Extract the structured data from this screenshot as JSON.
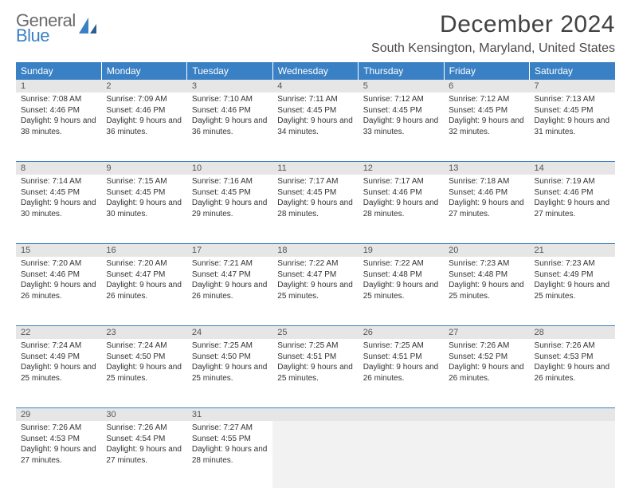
{
  "brand": {
    "part1": "General",
    "part2": "Blue"
  },
  "title": "December 2024",
  "location": "South Kensington, Maryland, United States",
  "colors": {
    "header_bg": "#3a80c4",
    "header_fg": "#ffffff",
    "daynum_bg": "#e6e6e6",
    "rule": "#3a80c4",
    "page_bg": "#ffffff",
    "text": "#333333",
    "brand_gray": "#6b6b6b",
    "brand_blue": "#3a80c4"
  },
  "weekdays": [
    "Sunday",
    "Monday",
    "Tuesday",
    "Wednesday",
    "Thursday",
    "Friday",
    "Saturday"
  ],
  "weeks": [
    [
      {
        "n": "1",
        "sr": "7:08 AM",
        "ss": "4:46 PM",
        "dl": "9 hours and 38 minutes."
      },
      {
        "n": "2",
        "sr": "7:09 AM",
        "ss": "4:46 PM",
        "dl": "9 hours and 36 minutes."
      },
      {
        "n": "3",
        "sr": "7:10 AM",
        "ss": "4:46 PM",
        "dl": "9 hours and 36 minutes."
      },
      {
        "n": "4",
        "sr": "7:11 AM",
        "ss": "4:45 PM",
        "dl": "9 hours and 34 minutes."
      },
      {
        "n": "5",
        "sr": "7:12 AM",
        "ss": "4:45 PM",
        "dl": "9 hours and 33 minutes."
      },
      {
        "n": "6",
        "sr": "7:12 AM",
        "ss": "4:45 PM",
        "dl": "9 hours and 32 minutes."
      },
      {
        "n": "7",
        "sr": "7:13 AM",
        "ss": "4:45 PM",
        "dl": "9 hours and 31 minutes."
      }
    ],
    [
      {
        "n": "8",
        "sr": "7:14 AM",
        "ss": "4:45 PM",
        "dl": "9 hours and 30 minutes."
      },
      {
        "n": "9",
        "sr": "7:15 AM",
        "ss": "4:45 PM",
        "dl": "9 hours and 30 minutes."
      },
      {
        "n": "10",
        "sr": "7:16 AM",
        "ss": "4:45 PM",
        "dl": "9 hours and 29 minutes."
      },
      {
        "n": "11",
        "sr": "7:17 AM",
        "ss": "4:45 PM",
        "dl": "9 hours and 28 minutes."
      },
      {
        "n": "12",
        "sr": "7:17 AM",
        "ss": "4:46 PM",
        "dl": "9 hours and 28 minutes."
      },
      {
        "n": "13",
        "sr": "7:18 AM",
        "ss": "4:46 PM",
        "dl": "9 hours and 27 minutes."
      },
      {
        "n": "14",
        "sr": "7:19 AM",
        "ss": "4:46 PM",
        "dl": "9 hours and 27 minutes."
      }
    ],
    [
      {
        "n": "15",
        "sr": "7:20 AM",
        "ss": "4:46 PM",
        "dl": "9 hours and 26 minutes."
      },
      {
        "n": "16",
        "sr": "7:20 AM",
        "ss": "4:47 PM",
        "dl": "9 hours and 26 minutes."
      },
      {
        "n": "17",
        "sr": "7:21 AM",
        "ss": "4:47 PM",
        "dl": "9 hours and 26 minutes."
      },
      {
        "n": "18",
        "sr": "7:22 AM",
        "ss": "4:47 PM",
        "dl": "9 hours and 25 minutes."
      },
      {
        "n": "19",
        "sr": "7:22 AM",
        "ss": "4:48 PM",
        "dl": "9 hours and 25 minutes."
      },
      {
        "n": "20",
        "sr": "7:23 AM",
        "ss": "4:48 PM",
        "dl": "9 hours and 25 minutes."
      },
      {
        "n": "21",
        "sr": "7:23 AM",
        "ss": "4:49 PM",
        "dl": "9 hours and 25 minutes."
      }
    ],
    [
      {
        "n": "22",
        "sr": "7:24 AM",
        "ss": "4:49 PM",
        "dl": "9 hours and 25 minutes."
      },
      {
        "n": "23",
        "sr": "7:24 AM",
        "ss": "4:50 PM",
        "dl": "9 hours and 25 minutes."
      },
      {
        "n": "24",
        "sr": "7:25 AM",
        "ss": "4:50 PM",
        "dl": "9 hours and 25 minutes."
      },
      {
        "n": "25",
        "sr": "7:25 AM",
        "ss": "4:51 PM",
        "dl": "9 hours and 25 minutes."
      },
      {
        "n": "26",
        "sr": "7:25 AM",
        "ss": "4:51 PM",
        "dl": "9 hours and 26 minutes."
      },
      {
        "n": "27",
        "sr": "7:26 AM",
        "ss": "4:52 PM",
        "dl": "9 hours and 26 minutes."
      },
      {
        "n": "28",
        "sr": "7:26 AM",
        "ss": "4:53 PM",
        "dl": "9 hours and 26 minutes."
      }
    ],
    [
      {
        "n": "29",
        "sr": "7:26 AM",
        "ss": "4:53 PM",
        "dl": "9 hours and 27 minutes."
      },
      {
        "n": "30",
        "sr": "7:26 AM",
        "ss": "4:54 PM",
        "dl": "9 hours and 27 minutes."
      },
      {
        "n": "31",
        "sr": "7:27 AM",
        "ss": "4:55 PM",
        "dl": "9 hours and 28 minutes."
      },
      null,
      null,
      null,
      null
    ]
  ],
  "labels": {
    "sunrise": "Sunrise:",
    "sunset": "Sunset:",
    "daylight": "Daylight:"
  }
}
